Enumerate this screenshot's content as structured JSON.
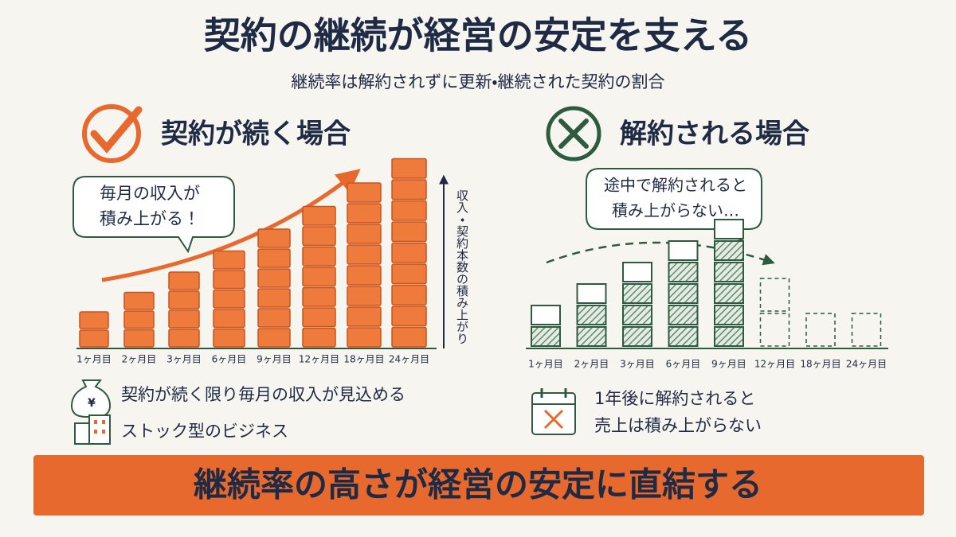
{
  "title": "契約の継続が経営の安定を支える",
  "subtitle": "継続率は解約されずに更新・継続された契約の割合",
  "left": {
    "heading": "契約が続く場合",
    "bubble": [
      "毎月の収入が",
      "積み上がる！"
    ],
    "axis_label": "収入・契約本数の積み上がり",
    "categories": [
      "1ヶ月目",
      "2ヶ月目",
      "3ヶ月目",
      "6ヶ月目",
      "9ヶ月目",
      "12ヶ月目",
      "18ヶ月目",
      "24ヶ月目"
    ],
    "blocks": [
      2,
      3,
      4,
      5,
      6,
      7,
      8,
      9
    ],
    "notes": [
      "契約が続く限り毎月の収入が見込める",
      "ストック型のビジネス"
    ]
  },
  "right": {
    "heading": "解約される場合",
    "bubble": [
      "途中で解約されると",
      "積み上がらない…"
    ],
    "categories": [
      "1ヶ月目",
      "2ヶ月目",
      "3ヶ月目",
      "6ヶ月目",
      "9ヶ月目",
      "12ヶ月目",
      "18ヶ月目",
      "24ヶ月目"
    ],
    "blocks": [
      2,
      3,
      4,
      5,
      6,
      0,
      0,
      0
    ],
    "lost_blocks": [
      0,
      0,
      0,
      0,
      0,
      2,
      1,
      1
    ],
    "notes": [
      "1年後に解約されると",
      "売上は積み上がらない"
    ]
  },
  "banner": "継続率の高さが経営の安定に直結する"
}
